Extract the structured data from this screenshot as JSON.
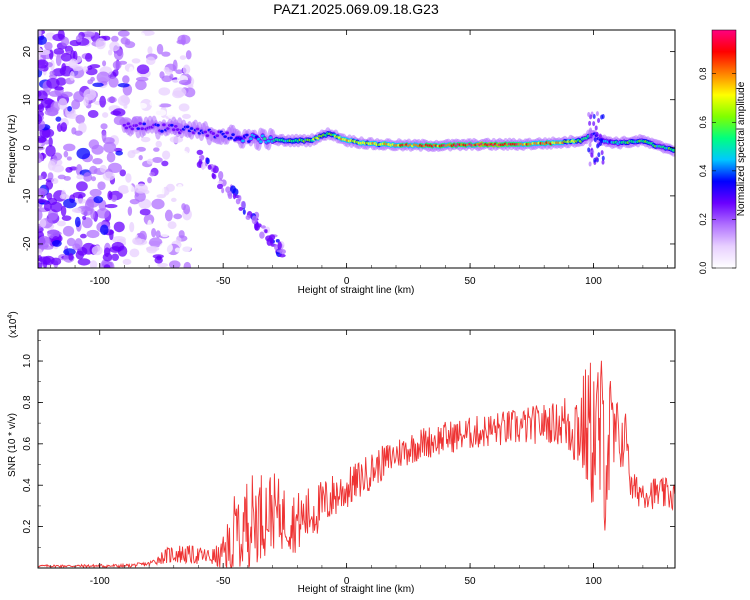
{
  "figure_title": "PAZ1.2025.069.09.18.G23",
  "colors": {
    "snr_line": "#ee3333",
    "axis": "#000000",
    "colormap": [
      "#ffffff",
      "#e8d0ff",
      "#b070ff",
      "#6a00ff",
      "#0000ff",
      "#00c8ff",
      "#00ff80",
      "#80ff00",
      "#ffff00",
      "#ff8000",
      "#ff0000",
      "#ff0080"
    ]
  },
  "chart_data": [
    {
      "type": "heatmap",
      "title": "PAZ1.2025.069.09.18.G23",
      "xlabel": "Height of straight line (km)",
      "ylabel": "Frequency (Hz)",
      "xlim": [
        -125,
        133
      ],
      "ylim": [
        -25,
        24.5
      ],
      "xticks": [
        -100,
        -50,
        0,
        50,
        100
      ],
      "yticks": [
        -20,
        -10,
        0,
        10,
        20
      ],
      "colorbar": {
        "label": "Normalized spectral amplitude",
        "range": [
          0,
          0.98
        ],
        "ticks": [
          0.0,
          0.2,
          0.4,
          0.6,
          0.8
        ]
      },
      "ridge_frequency_hz": [
        [
          -85,
          4.5
        ],
        [
          -70,
          4
        ],
        [
          -55,
          3
        ],
        [
          -40,
          2
        ],
        [
          -25,
          1.5
        ],
        [
          -15,
          1.5
        ],
        [
          -7,
          3
        ],
        [
          0,
          1.5
        ],
        [
          10,
          0.8
        ],
        [
          25,
          0.5
        ],
        [
          40,
          0.5
        ],
        [
          55,
          0.7
        ],
        [
          70,
          0.7
        ],
        [
          85,
          1.0
        ],
        [
          95,
          1.5
        ],
        [
          100,
          3.0
        ],
        [
          103,
          1.5
        ],
        [
          110,
          1.0
        ],
        [
          120,
          1.5
        ],
        [
          125,
          0.5
        ],
        [
          133,
          -0.5
        ]
      ],
      "ridge_amplitude": [
        [
          -88,
          0.3
        ],
        [
          -70,
          0.35
        ],
        [
          -50,
          0.35
        ],
        [
          -35,
          0.5
        ],
        [
          -20,
          0.6
        ],
        [
          -10,
          0.7
        ],
        [
          0,
          0.75
        ],
        [
          20,
          0.85
        ],
        [
          40,
          0.95
        ],
        [
          60,
          0.98
        ],
        [
          80,
          0.9
        ],
        [
          95,
          0.7
        ],
        [
          100,
          0.4
        ],
        [
          115,
          0.6
        ],
        [
          133,
          0.6
        ]
      ]
    },
    {
      "type": "line",
      "xlabel": "Height of straight line (km)",
      "ylabel": "SNR (10 * v/v)",
      "y_multiplier_label": "(x10",
      "y_multiplier_exp": "4",
      "y_multiplier_close": ")",
      "xlim": [
        -125,
        133
      ],
      "ylim": [
        0,
        1.15
      ],
      "xticks": [
        -100,
        -50,
        0,
        50,
        100
      ],
      "yticks": [
        0.2,
        0.4,
        0.6,
        0.8,
        1.0
      ],
      "series": [
        {
          "trend": [
            [
              -125,
              0.01
            ],
            [
              -90,
              0.01
            ],
            [
              -80,
              0.02
            ],
            [
              -75,
              0.05
            ],
            [
              -70,
              0.07
            ],
            [
              -60,
              0.06
            ],
            [
              -52,
              0.05
            ],
            [
              -47,
              0.1
            ],
            [
              -42,
              0.2
            ],
            [
              -36,
              0.25
            ],
            [
              -30,
              0.28
            ],
            [
              -25,
              0.24
            ],
            [
              -20,
              0.22
            ],
            [
              -15,
              0.26
            ],
            [
              -10,
              0.3
            ],
            [
              -5,
              0.35
            ],
            [
              0,
              0.38
            ],
            [
              10,
              0.47
            ],
            [
              20,
              0.55
            ],
            [
              30,
              0.6
            ],
            [
              40,
              0.63
            ],
            [
              50,
              0.65
            ],
            [
              60,
              0.67
            ],
            [
              70,
              0.68
            ],
            [
              80,
              0.7
            ],
            [
              90,
              0.7
            ],
            [
              96,
              0.68
            ],
            [
              100,
              0.65
            ],
            [
              105,
              0.6
            ],
            [
              110,
              0.62
            ],
            [
              114,
              0.63
            ],
            [
              115,
              0.38
            ],
            [
              120,
              0.37
            ],
            [
              133,
              0.35
            ]
          ],
          "noise_amplitude": [
            [
              -125,
              0.005
            ],
            [
              -80,
              0.01
            ],
            [
              -70,
              0.05
            ],
            [
              -55,
              0.04
            ],
            [
              -50,
              0.08
            ],
            [
              -45,
              0.25
            ],
            [
              -35,
              0.22
            ],
            [
              -25,
              0.16
            ],
            [
              -15,
              0.14
            ],
            [
              0,
              0.1
            ],
            [
              20,
              0.08
            ],
            [
              50,
              0.08
            ],
            [
              85,
              0.1
            ],
            [
              95,
              0.25
            ],
            [
              100,
              0.4
            ],
            [
              105,
              0.45
            ],
            [
              110,
              0.18
            ],
            [
              114,
              0.12
            ],
            [
              115,
              0.08
            ],
            [
              133,
              0.08
            ]
          ]
        }
      ]
    }
  ]
}
